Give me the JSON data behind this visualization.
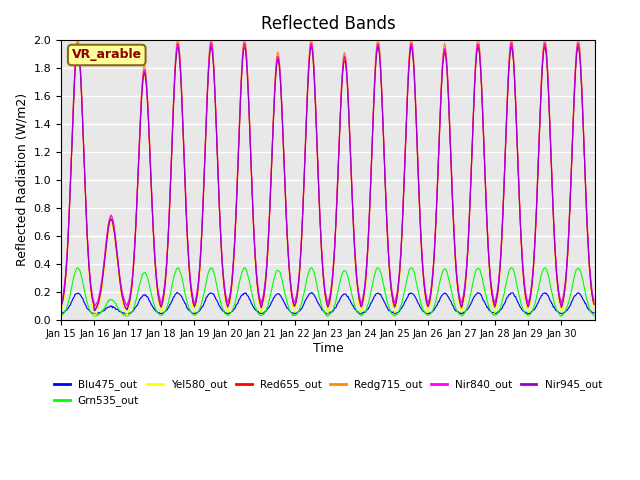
{
  "title": "Reflected Bands",
  "xlabel": "Time",
  "ylabel": "Reflected Radiation (W/m2)",
  "annotation_text": "VR_arable",
  "annotation_color": "#8B0000",
  "annotation_bg": "#FFFF99",
  "annotation_border": "#8B6914",
  "ylim": [
    0,
    2.0
  ],
  "series": [
    {
      "label": "Blu475_out",
      "color": "#0000FF",
      "peak": 0.15,
      "base": 0.04
    },
    {
      "label": "Grn535_out",
      "color": "#00FF00",
      "peak": 0.35,
      "base": 0.02
    },
    {
      "label": "Yel580_out",
      "color": "#FFFF00",
      "peak": 1.93,
      "base": 0.01
    },
    {
      "label": "Red655_out",
      "color": "#FF0000",
      "peak": 1.92,
      "base": 0.05
    },
    {
      "label": "Redg715_out",
      "color": "#FF8C00",
      "peak": 1.95,
      "base": 0.06
    },
    {
      "label": "Nir840_out",
      "color": "#FF00FF",
      "peak": 1.9,
      "base": 0.08
    },
    {
      "label": "Nir945_out",
      "color": "#9900CC",
      "peak": 1.9,
      "base": 0.05
    }
  ],
  "xtick_labels": [
    "Jan 15",
    "Jan 16",
    "Jan 17",
    "Jan 18",
    "Jan 19",
    "Jan 20",
    "Jan 21",
    "Jan 22",
    "Jan 23",
    "Jan 24",
    "Jan 25",
    "Jan 26",
    "Jan 27",
    "Jan 28",
    "Jan 29",
    "Jan 30"
  ],
  "n_days": 16,
  "pts_per_day": 48,
  "clear_pattern": [
    1.0,
    0.35,
    0.9,
    1.0,
    1.0,
    1.0,
    0.95,
    1.0,
    0.95,
    1.0,
    1.0,
    0.98,
    1.0,
    1.0,
    1.0,
    1.0
  ],
  "bg_color": "#E8E8E8",
  "grid_color": "white",
  "linewidth": 0.8,
  "yticks": [
    0.0,
    0.2,
    0.4,
    0.6,
    0.8,
    1.0,
    1.2,
    1.4,
    1.6,
    1.8,
    2.0
  ]
}
